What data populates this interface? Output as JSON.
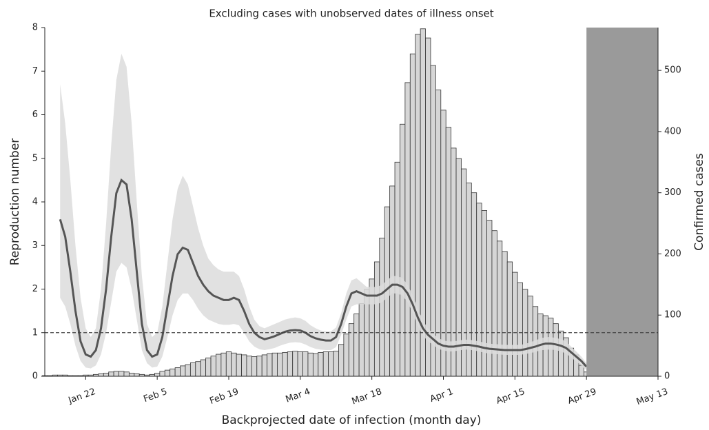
{
  "chart_data": {
    "type": "bar-line",
    "title": "Excluding cases with unobserved dates of illness onset",
    "x_label": "Backprojected date of infection (month day)",
    "y_label": "Reproduction number",
    "y2_label": "Confirmed cases",
    "categories": [
      null,
      null,
      null,
      null,
      null,
      null,
      null,
      null,
      "Jan 22",
      null,
      null,
      null,
      null,
      null,
      null,
      null,
      null,
      null,
      null,
      null,
      null,
      null,
      "Feb 5",
      null,
      null,
      null,
      null,
      null,
      null,
      null,
      null,
      null,
      null,
      null,
      null,
      null,
      "Feb 19",
      null,
      null,
      null,
      null,
      null,
      null,
      null,
      null,
      null,
      null,
      null,
      null,
      null,
      "Mar 4",
      null,
      null,
      null,
      null,
      null,
      null,
      null,
      null,
      null,
      null,
      null,
      null,
      null,
      "Mar 18",
      null,
      null,
      null,
      null,
      null,
      null,
      null,
      null,
      null,
      null,
      null,
      null,
      null,
      "Apr 1",
      null,
      null,
      null,
      null,
      null,
      null,
      null,
      null,
      null,
      null,
      null,
      null,
      null,
      "Apr 15",
      null,
      null,
      null,
      null,
      null,
      null,
      null,
      null,
      null,
      null,
      null,
      null,
      null,
      "Apr 29",
      null,
      null,
      null,
      null,
      null,
      null,
      null,
      null,
      null,
      null,
      null,
      null,
      null,
      "May 13"
    ],
    "ylim": [
      0,
      8
    ],
    "yticks": [
      0,
      1,
      2,
      3,
      4,
      5,
      6,
      7,
      8
    ],
    "y2lim": [
      0,
      570
    ],
    "y2ticks": [
      0,
      100,
      200,
      300,
      400,
      500
    ],
    "reference_line": 1,
    "shaded_region": [
      "Apr 29",
      "May 13"
    ],
    "shaded_color": "#9a9a9a",
    "series": [
      {
        "type": "bar",
        "axis": "y2",
        "color": "#d6d6d6",
        "values": [
          1,
          1,
          2,
          2,
          2,
          1,
          1,
          1,
          2,
          2,
          3,
          4,
          5,
          7,
          8,
          8,
          7,
          5,
          4,
          3,
          2,
          3,
          5,
          8,
          10,
          12,
          14,
          17,
          19,
          22,
          24,
          27,
          30,
          33,
          36,
          38,
          40,
          38,
          36,
          35,
          33,
          32,
          33,
          35,
          37,
          38,
          38,
          39,
          40,
          41,
          40,
          40,
          38,
          37,
          39,
          40,
          40,
          41,
          52,
          69,
          86,
          102,
          119,
          142,
          159,
          187,
          226,
          277,
          311,
          350,
          412,
          480,
          527,
          559,
          568,
          553,
          508,
          468,
          435,
          407,
          373,
          356,
          339,
          316,
          300,
          283,
          271,
          255,
          238,
          221,
          204,
          187,
          170,
          153,
          142,
          131,
          114,
          102,
          99,
          95,
          86,
          74,
          63,
          46,
          35,
          18,
          7,
          null,
          null,
          null,
          null,
          null,
          null,
          null,
          null,
          null,
          null,
          null,
          null,
          null,
          null
        ]
      },
      {
        "type": "line",
        "color": "#555555",
        "band_color": "#dcdcdc",
        "values": [
          null,
          null,
          null,
          3.6,
          3.2,
          2.4,
          1.5,
          0.8,
          0.5,
          0.45,
          0.6,
          1.1,
          2.0,
          3.2,
          4.2,
          4.5,
          4.4,
          3.6,
          2.4,
          1.2,
          0.6,
          0.45,
          0.5,
          0.9,
          1.6,
          2.3,
          2.8,
          2.95,
          2.9,
          2.6,
          2.3,
          2.1,
          1.95,
          1.85,
          1.8,
          1.75,
          1.75,
          1.8,
          1.75,
          1.5,
          1.2,
          1.0,
          0.9,
          0.85,
          0.88,
          0.92,
          0.97,
          1.02,
          1.05,
          1.06,
          1.05,
          1.0,
          0.92,
          0.87,
          0.84,
          0.82,
          0.82,
          0.9,
          1.2,
          1.6,
          1.9,
          1.95,
          1.9,
          1.85,
          1.85,
          1.85,
          1.9,
          2.0,
          2.1,
          2.1,
          2.05,
          1.9,
          1.65,
          1.35,
          1.1,
          0.95,
          0.85,
          0.75,
          0.7,
          0.68,
          0.68,
          0.7,
          0.72,
          0.72,
          0.7,
          0.68,
          0.65,
          0.63,
          0.62,
          0.61,
          0.6,
          0.6,
          0.6,
          0.6,
          0.62,
          0.65,
          0.68,
          0.72,
          0.75,
          0.75,
          0.73,
          0.7,
          0.65,
          0.55,
          0.45,
          0.35,
          0.22,
          null,
          null,
          null,
          null,
          null,
          null,
          null,
          null,
          null,
          null,
          null,
          null,
          null,
          null
        ],
        "upper": [
          null,
          null,
          null,
          6.7,
          5.8,
          4.5,
          3.0,
          1.8,
          1.1,
          0.9,
          1.1,
          2.0,
          3.5,
          5.3,
          6.8,
          7.4,
          7.1,
          5.8,
          4.0,
          2.3,
          1.2,
          0.9,
          1.0,
          1.6,
          2.6,
          3.6,
          4.3,
          4.6,
          4.4,
          3.9,
          3.4,
          3.0,
          2.7,
          2.55,
          2.45,
          2.4,
          2.4,
          2.4,
          2.3,
          2.0,
          1.6,
          1.3,
          1.15,
          1.1,
          1.15,
          1.2,
          1.25,
          1.3,
          1.33,
          1.35,
          1.33,
          1.27,
          1.17,
          1.1,
          1.05,
          1.03,
          1.03,
          1.12,
          1.45,
          1.9,
          2.2,
          2.25,
          2.15,
          2.05,
          2.05,
          2.05,
          2.1,
          2.2,
          2.3,
          2.3,
          2.25,
          2.1,
          1.85,
          1.55,
          1.27,
          1.1,
          0.98,
          0.88,
          0.82,
          0.8,
          0.8,
          0.82,
          0.84,
          0.84,
          0.82,
          0.8,
          0.77,
          0.75,
          0.74,
          0.73,
          0.72,
          0.72,
          0.72,
          0.72,
          0.74,
          0.78,
          0.82,
          0.87,
          0.9,
          0.9,
          0.88,
          0.85,
          0.8,
          0.68,
          0.57,
          0.45,
          0.3,
          null,
          null,
          null,
          null,
          null,
          null,
          null,
          null,
          null,
          null,
          null,
          null,
          null,
          null
        ],
        "lower": [
          null,
          null,
          null,
          1.8,
          1.6,
          1.2,
          0.7,
          0.35,
          0.2,
          0.18,
          0.25,
          0.5,
          1.0,
          1.7,
          2.4,
          2.6,
          2.5,
          2.0,
          1.3,
          0.6,
          0.3,
          0.2,
          0.22,
          0.45,
          0.9,
          1.4,
          1.75,
          1.9,
          1.9,
          1.75,
          1.55,
          1.4,
          1.3,
          1.25,
          1.2,
          1.18,
          1.18,
          1.2,
          1.17,
          1.0,
          0.8,
          0.68,
          0.62,
          0.6,
          0.62,
          0.65,
          0.7,
          0.74,
          0.77,
          0.78,
          0.77,
          0.73,
          0.67,
          0.63,
          0.61,
          0.6,
          0.6,
          0.67,
          0.95,
          1.3,
          1.6,
          1.65,
          1.65,
          1.65,
          1.65,
          1.65,
          1.7,
          1.8,
          1.9,
          1.9,
          1.85,
          1.7,
          1.45,
          1.15,
          0.93,
          0.8,
          0.72,
          0.63,
          0.59,
          0.57,
          0.57,
          0.59,
          0.61,
          0.61,
          0.59,
          0.57,
          0.54,
          0.52,
          0.51,
          0.5,
          0.49,
          0.49,
          0.49,
          0.49,
          0.51,
          0.53,
          0.56,
          0.59,
          0.61,
          0.61,
          0.6,
          0.57,
          0.52,
          0.43,
          0.34,
          0.25,
          0.14,
          null,
          null,
          null,
          null,
          null,
          null,
          null,
          null,
          null,
          null,
          null,
          null,
          null,
          null
        ]
      }
    ]
  }
}
